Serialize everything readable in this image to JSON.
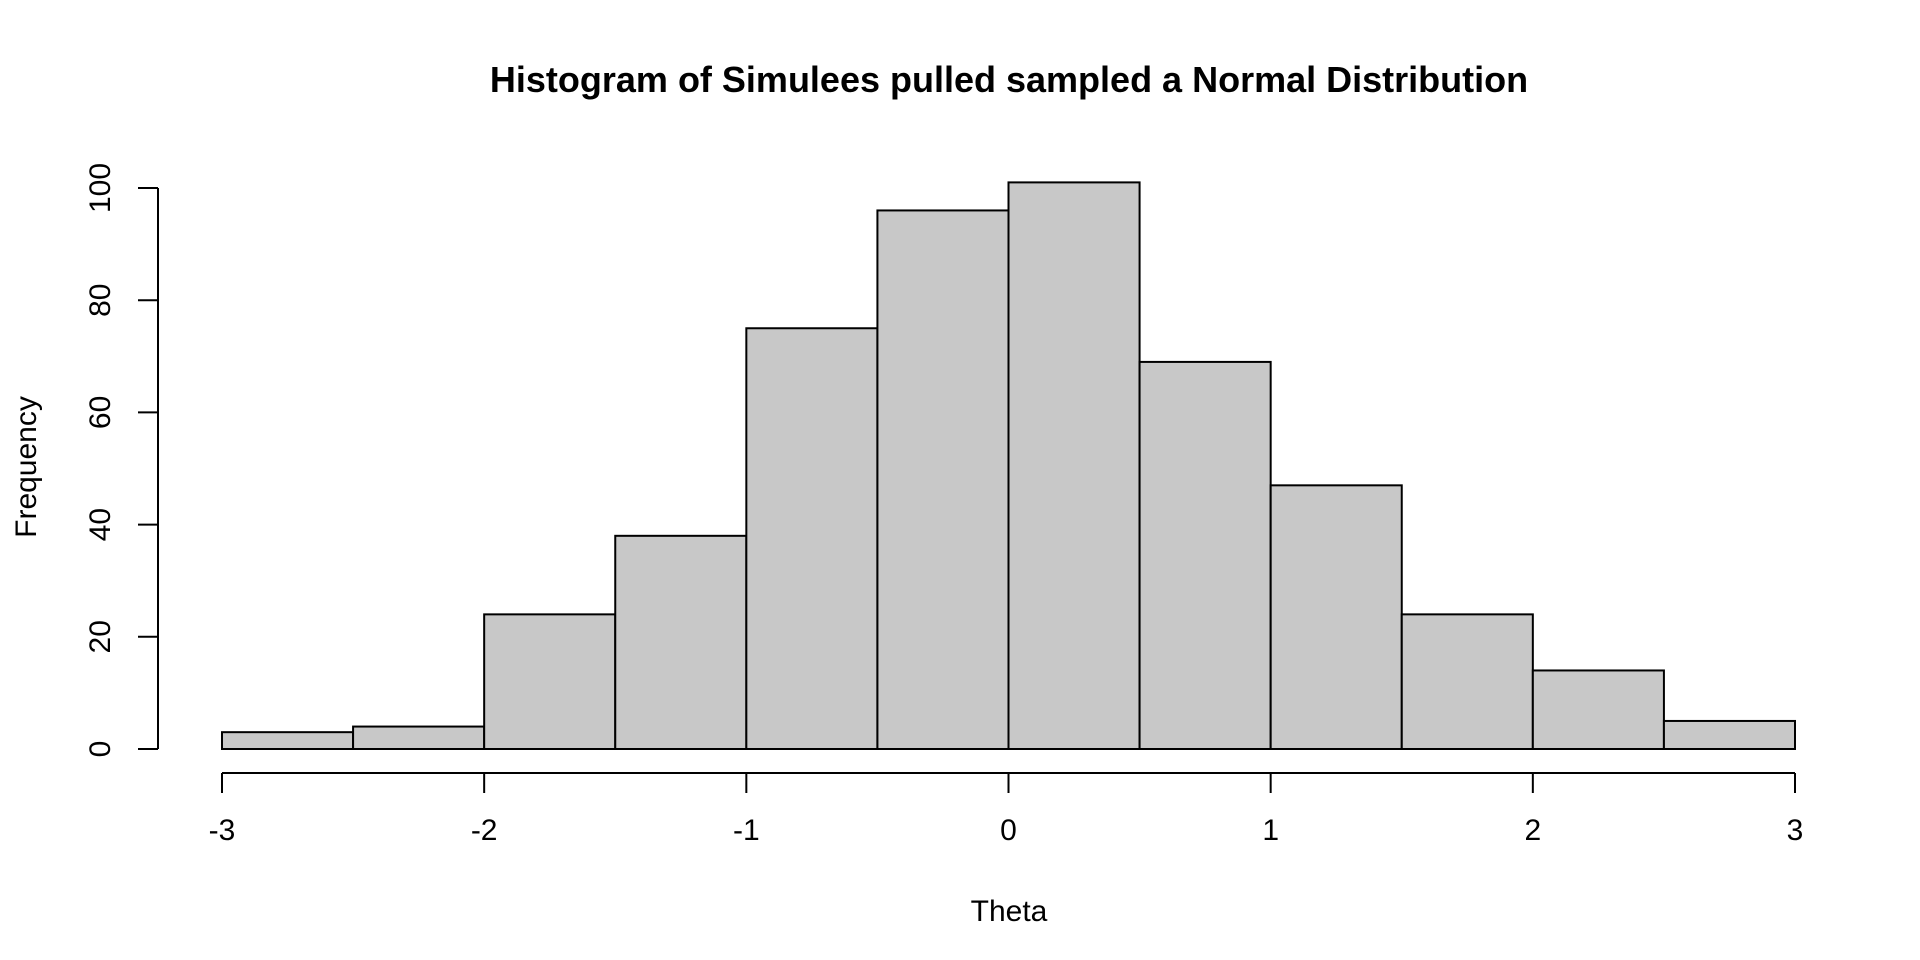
{
  "chart_data": {
    "type": "bar",
    "subtype": "histogram",
    "title": "Histogram of Simulees pulled sampled a Normal Distribution",
    "xlabel": "Theta",
    "ylabel": "Frequency",
    "bin_edges": [
      -3,
      -2.5,
      -2,
      -1.5,
      -1,
      -0.5,
      0,
      0.5,
      1,
      1.5,
      2,
      2.5,
      3
    ],
    "values": [
      3,
      4,
      24,
      38,
      75,
      96,
      101,
      69,
      47,
      24,
      14,
      5
    ],
    "xlim": [
      -3,
      3
    ],
    "ylim": [
      0,
      100
    ],
    "x_ticks": [
      -3,
      -2,
      -1,
      0,
      1,
      2,
      3
    ],
    "x_tick_labels": [
      "-3",
      "-2",
      "-1",
      "0",
      "1",
      "2",
      "3"
    ],
    "y_ticks": [
      0,
      20,
      40,
      60,
      80,
      100
    ],
    "y_tick_labels": [
      "0",
      "20",
      "40",
      "60",
      "80",
      "100"
    ],
    "bar_color": "#c8c8c8",
    "edge_color": "#000000",
    "grid": false,
    "legend": "none"
  }
}
